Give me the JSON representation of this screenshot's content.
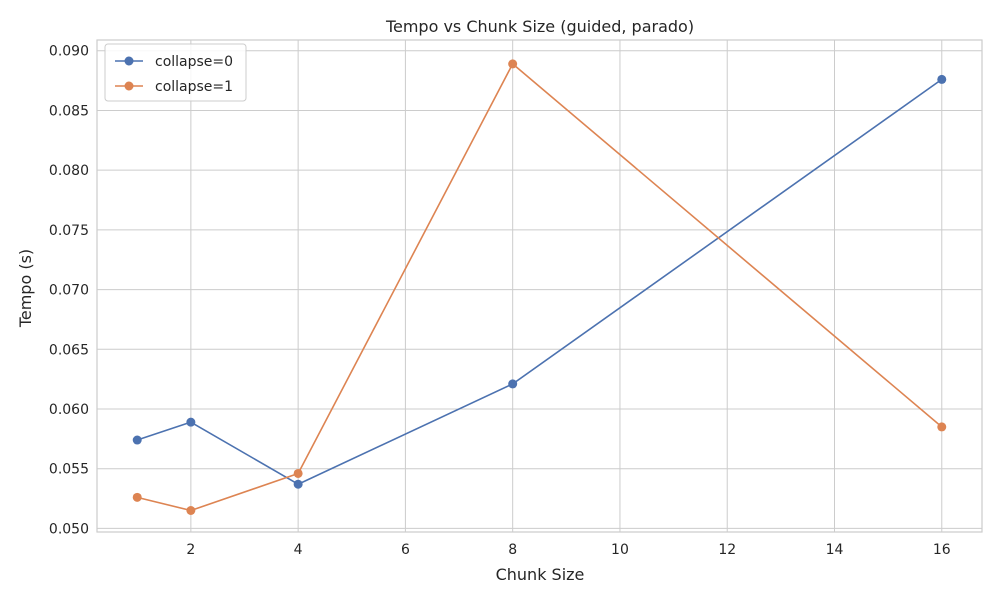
{
  "chart_data": {
    "type": "line",
    "title": "Tempo vs Chunk Size (guided, parado)",
    "xlabel": "Chunk Size",
    "ylabel": "Tempo (s)",
    "xlim": [
      0.25,
      16.75
    ],
    "ylim": [
      0.0497,
      0.0909
    ],
    "xticks": [
      2,
      4,
      6,
      8,
      10,
      12,
      14,
      16
    ],
    "xtick_labels": [
      "2",
      "4",
      "6",
      "8",
      "10",
      "12",
      "14",
      "16"
    ],
    "yticks": [
      0.05,
      0.055,
      0.06,
      0.065,
      0.07,
      0.075,
      0.08,
      0.085,
      0.09
    ],
    "ytick_labels": [
      "0.050",
      "0.055",
      "0.060",
      "0.065",
      "0.070",
      "0.075",
      "0.080",
      "0.085",
      "0.090"
    ],
    "grid": true,
    "legend_position": "top-left",
    "series": [
      {
        "name": "collapse=0",
        "color": "#4c72b0",
        "marker": "circle",
        "x": [
          1,
          2,
          4,
          8,
          16
        ],
        "y": [
          0.0574,
          0.0589,
          0.0537,
          0.0621,
          0.0876
        ]
      },
      {
        "name": "collapse=1",
        "color": "#dd8452",
        "marker": "circle",
        "x": [
          1,
          2,
          4,
          8,
          16
        ],
        "y": [
          0.0526,
          0.0515,
          0.0546,
          0.0889,
          0.0585
        ]
      }
    ]
  }
}
